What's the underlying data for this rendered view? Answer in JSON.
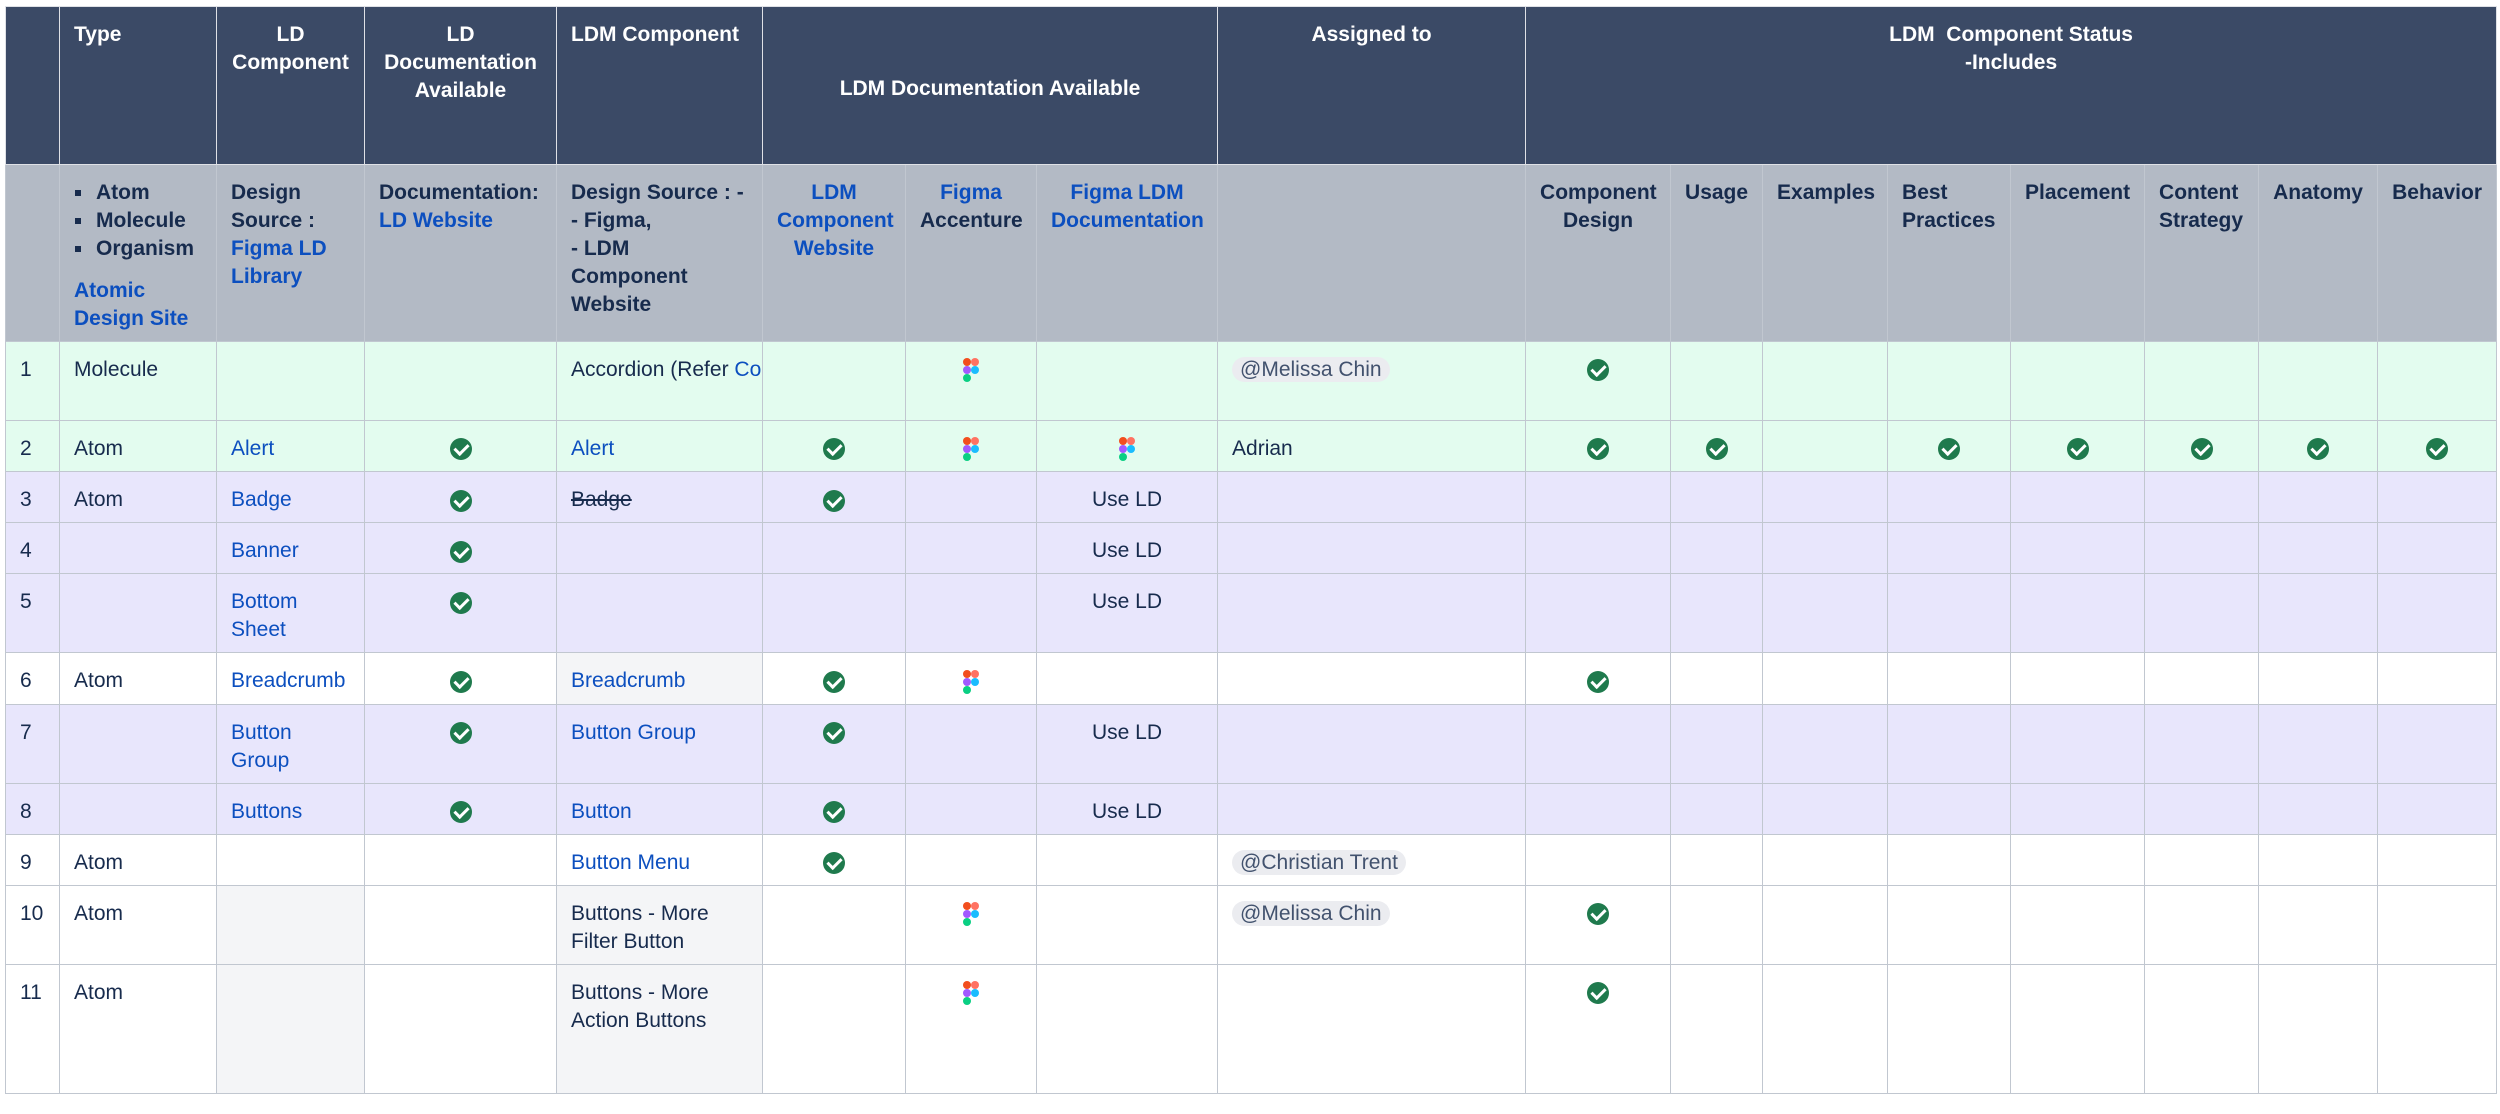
{
  "header": {
    "col_type": "Type",
    "col_ld_component": "LD Component",
    "col_ld_doc": "LD Documentation Available",
    "col_ldm_component": "LDM Component",
    "col_ldm_doc": "LDM Documentation Available",
    "col_assigned": "Assigned to",
    "col_status_line1": "LDM  Component Status",
    "col_status_line2": "-Includes"
  },
  "subheader": {
    "types": [
      "Atom",
      "Molecule",
      "Organism"
    ],
    "atomic_link": "Atomic Design Site",
    "design_source": "Design Source :",
    "figma_ld_library": "Figma LD Library",
    "documentation": "Documentation:",
    "ld_website": "LD Website",
    "ldm_design_source_1": "Design Source : -",
    "ldm_design_source_2": "- Figma,",
    "ldm_design_source_3": "- LDM Component Website",
    "ldm_component_website": "LDM Component Website",
    "figma": "Figma",
    "accenture": "Accenture",
    "figma_ldm_documentation": "Figma LDM Documentation",
    "component_design": "Component Design",
    "usage": "Usage",
    "examples": "Examples",
    "best_practices": "Best Practices",
    "placement": "Placement",
    "content_strategy": "Content Strategy",
    "anatomy": "Anatomy",
    "behavior": "Behavior"
  },
  "rows": [
    {
      "n": "1",
      "type": "Molecule",
      "ld": "",
      "ldm_pre": "Accordion (Refer ",
      "ldm_link": "Collapse",
      "ldm_post": ")",
      "use_ld": "",
      "assigned": "@Melissa Chin"
    },
    {
      "n": "2",
      "type": "Atom",
      "ld": "Alert",
      "ldm_link": "Alert",
      "use_ld": "",
      "assigned": "Adrian"
    },
    {
      "n": "3",
      "type": "Atom",
      "ld": "Badge",
      "ldm_strike": "Badge",
      "use_ld": "Use LD",
      "assigned": ""
    },
    {
      "n": "4",
      "type": "",
      "ld": "Banner",
      "use_ld": "Use LD",
      "assigned": ""
    },
    {
      "n": "5",
      "type": "",
      "ld": "Bottom Sheet",
      "use_ld": "Use LD",
      "assigned": ""
    },
    {
      "n": "6",
      "type": "Atom",
      "ld": "Breadcrumb",
      "ldm_link": "Breadcrumb",
      "use_ld": "",
      "assigned": ""
    },
    {
      "n": "7",
      "type": "",
      "ld": "Button Group",
      "ldm_link": "Button Group",
      "use_ld": "Use LD",
      "assigned": ""
    },
    {
      "n": "8",
      "type": "",
      "ld": "Buttons",
      "ldm_link": "Button",
      "use_ld": "Use LD",
      "assigned": ""
    },
    {
      "n": "9",
      "type": "Atom",
      "ld": "",
      "ldm_link": "Button Menu",
      "use_ld": "",
      "assigned": "@Christian Trent"
    },
    {
      "n": "10",
      "type": "Atom",
      "ld": "",
      "ldm_text": "Buttons - More Filter Button",
      "use_ld": "",
      "assigned": "@Melissa Chin"
    },
    {
      "n": "11",
      "type": "Atom",
      "ld": "",
      "ldm_text": "Buttons - More Action Buttons",
      "use_ld": "",
      "assigned": ""
    }
  ],
  "icons": {
    "check": "check-circle-icon",
    "figma": "figma-icon"
  },
  "colors": {
    "header_bg": "#3b4a66",
    "subheader_bg": "#b3bac5",
    "green_row": "#e3fcef",
    "purple_row": "#e8e6fc",
    "check": "#1f7a4d",
    "link": "#0c4fbf"
  }
}
